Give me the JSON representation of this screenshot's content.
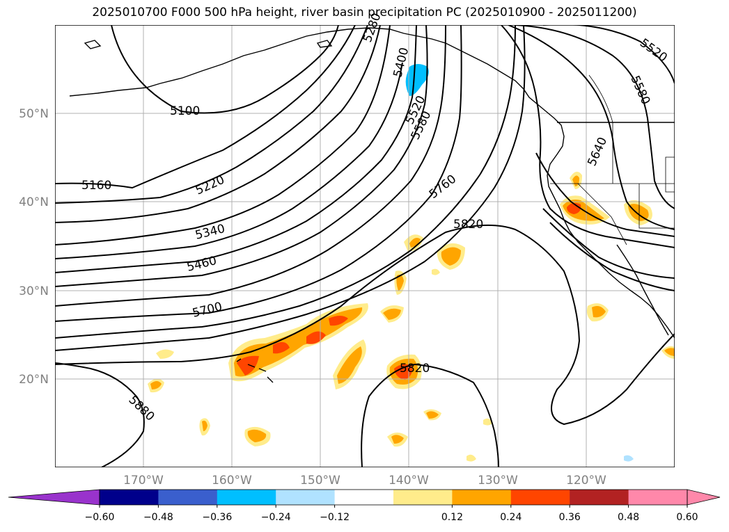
{
  "title": "2025010700 F000 500 hPa height, river basin precipitation PC (2025010900 - 2025011200)",
  "map": {
    "lat_labels": [
      "50°N",
      "40°N",
      "30°N",
      "20°N"
    ],
    "lon_labels": [
      "170°W",
      "160°W",
      "150°W",
      "140°W",
      "130°W",
      "120°W"
    ],
    "contour_labels": [
      "5100",
      "5160",
      "5220",
      "5340",
      "5460",
      "5700",
      "5880",
      "5400",
      "5520",
      "5580",
      "5760",
      "5820",
      "5820",
      "5520",
      "5580",
      "5640",
      "5280"
    ],
    "colors": {
      "coast": "#000000",
      "grid": "#b0b0b0"
    }
  },
  "colorbar": {
    "colors": [
      "#9933cc",
      "#00008b",
      "#3a5fcd",
      "#00bfff",
      "#b0e2ff",
      "#ffffff",
      "#ffec8b",
      "#ffa500",
      "#ff4500",
      "#b22222",
      "#ff88aa",
      "#ff88aa"
    ],
    "ticks": [
      "−0.60",
      "−0.48",
      "−0.36",
      "−0.24",
      "−0.12",
      "0.12",
      "0.24",
      "0.36",
      "0.48",
      "0.60"
    ]
  }
}
